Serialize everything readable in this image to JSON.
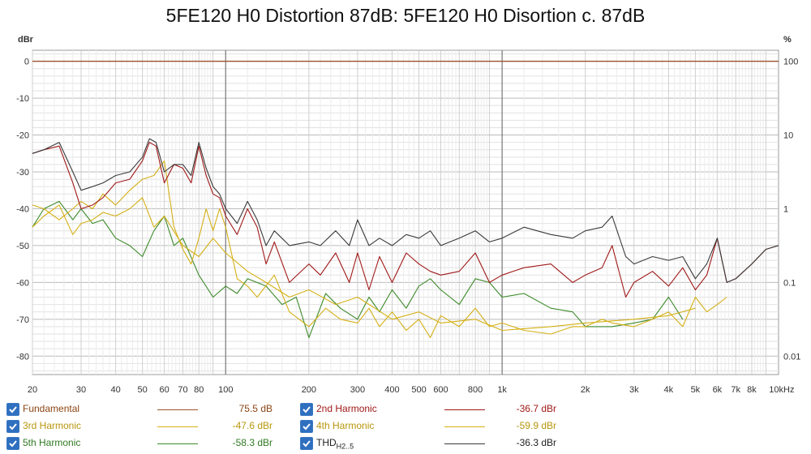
{
  "chart_data": {
    "type": "line",
    "title": "5FE120 H0 Distortion 87dB: 5FE120 H0 Disortion c. 87dB",
    "xscale": "log",
    "xlim": [
      20,
      10000
    ],
    "ylim": [
      -85,
      3
    ],
    "ylabel_left": "dBr",
    "ylabel_right": "%",
    "xunit": "Hz",
    "yticks": [
      0,
      -10,
      -20,
      -30,
      -40,
      -50,
      -60,
      -70,
      -80
    ],
    "yticks_right": [
      "100",
      "10",
      "1",
      "0.1",
      "0.01"
    ],
    "xticks": [
      "20",
      "30",
      "40",
      "50",
      "60",
      "70",
      "80",
      "100",
      "200",
      "300",
      "400",
      "500",
      "600",
      "800",
      "1k",
      "2k",
      "3k",
      "4k",
      "5k",
      "6k",
      "7k",
      "8k",
      "10k"
    ],
    "grid": true,
    "series": [
      {
        "name": "Fundamental",
        "color": "#a0522d",
        "value": "75.5 dB",
        "x": [
          20,
          10000
        ],
        "y": [
          0,
          0
        ]
      },
      {
        "name": "2nd Harmonic",
        "color": "#a01818",
        "value": "-36.7 dBr",
        "x": [
          20,
          22,
          25,
          28,
          30,
          33,
          36,
          40,
          45,
          50,
          53,
          56,
          60,
          65,
          70,
          75,
          80,
          85,
          90,
          95,
          100,
          110,
          120,
          130,
          140,
          150,
          170,
          200,
          220,
          250,
          280,
          300,
          330,
          360,
          400,
          450,
          500,
          550,
          600,
          700,
          800,
          900,
          1000,
          1200,
          1500,
          1800,
          2000,
          2300,
          2500,
          2800,
          3000,
          3500,
          4000,
          4500,
          5000,
          5500,
          6000,
          6500,
          7000,
          8000,
          9000,
          10000
        ],
        "y": [
          -25,
          -24,
          -23,
          -33,
          -40,
          -39,
          -37,
          -33,
          -32,
          -27,
          -22,
          -23,
          -33,
          -28,
          -29,
          -33,
          -23,
          -31,
          -36,
          -37,
          -42,
          -47,
          -40,
          -45,
          -55,
          -49,
          -60,
          -55,
          -58,
          -52,
          -60,
          -52,
          -62,
          -53,
          -60,
          -52,
          -55,
          -57,
          -58,
          -57,
          -52,
          -60,
          -58,
          -56,
          -55,
          -60,
          -58,
          -56,
          -50,
          -64,
          -60,
          -57,
          -61,
          -56,
          -62,
          -58,
          -48,
          -60,
          -59,
          -55,
          -51,
          -50
        ]
      },
      {
        "name": "3rd Harmonic",
        "color": "#d4b016",
        "value": "-47.6 dBr",
        "x": [
          20,
          22,
          25,
          28,
          30,
          33,
          36,
          40,
          45,
          50,
          55,
          60,
          65,
          70,
          75,
          80,
          85,
          90,
          95,
          100,
          110,
          120,
          130,
          150,
          170,
          200,
          230,
          260,
          300,
          330,
          360,
          400,
          450,
          500,
          550,
          600,
          700,
          800,
          900,
          1000,
          1200,
          1500,
          1800,
          2000,
          2300,
          2500,
          3000,
          3500,
          4000,
          4500,
          5000,
          5500,
          6000,
          6500
        ],
        "y": [
          -39,
          -40,
          -43,
          -40,
          -38,
          -40,
          -36,
          -39,
          -35,
          -32,
          -31,
          -27,
          -45,
          -51,
          -55,
          -48,
          -40,
          -46,
          -40,
          -45,
          -59,
          -61,
          -64,
          -58,
          -68,
          -72,
          -67,
          -70,
          -71,
          -67,
          -72,
          -68,
          -73,
          -70,
          -75,
          -69,
          -72,
          -67,
          -72,
          -71,
          -73,
          -74,
          -72,
          -72,
          -70,
          -71,
          -72,
          -70,
          -68,
          -72,
          -64,
          -68,
          -66,
          -64
        ]
      },
      {
        "name": "4th Harmonic",
        "color": "#d4b016",
        "value": "-59.9 dBr",
        "x": [
          20,
          22,
          25,
          28,
          30,
          33,
          36,
          40,
          45,
          50,
          55,
          60,
          70,
          80,
          90,
          100,
          120,
          140,
          170,
          200,
          250,
          300,
          400,
          500,
          600,
          800,
          1000,
          1500,
          2000,
          3000,
          4000,
          5000
        ],
        "y": [
          -45,
          -42,
          -39,
          -47,
          -44,
          -43,
          -41,
          -42,
          -40,
          -37,
          -45,
          -42,
          -50,
          -53,
          -48,
          -52,
          -57,
          -60,
          -64,
          -62,
          -66,
          -64,
          -70,
          -68,
          -71,
          -70,
          -73,
          -72,
          -71,
          -70,
          -69,
          -67
        ]
      },
      {
        "name": "5th Harmonic",
        "color": "#3d8a2a",
        "value": "-58.3 dBr",
        "x": [
          20,
          22,
          25,
          28,
          30,
          33,
          36,
          40,
          45,
          50,
          55,
          60,
          65,
          70,
          80,
          90,
          100,
          110,
          120,
          140,
          160,
          180,
          200,
          230,
          260,
          300,
          330,
          360,
          400,
          450,
          500,
          550,
          600,
          700,
          800,
          900,
          1000,
          1200,
          1500,
          1800,
          2000,
          2500,
          3000,
          3500,
          4000,
          4500
        ],
        "y": [
          -45,
          -40,
          -38,
          -43,
          -40,
          -44,
          -43,
          -48,
          -50,
          -53,
          -46,
          -42,
          -50,
          -48,
          -58,
          -64,
          -61,
          -63,
          -59,
          -61,
          -66,
          -64,
          -75,
          -63,
          -67,
          -70,
          -64,
          -68,
          -62,
          -67,
          -61,
          -59,
          -62,
          -66,
          -59,
          -60,
          -64,
          -63,
          -67,
          -68,
          -72,
          -72,
          -71,
          -70,
          -64,
          -70
        ]
      },
      {
        "name": "THD",
        "name_sub": "H2..5",
        "color": "#3a3a3a",
        "value": "-36.3 dBr",
        "x": [
          20,
          22,
          25,
          28,
          30,
          33,
          36,
          40,
          45,
          50,
          53,
          56,
          60,
          65,
          70,
          75,
          80,
          85,
          90,
          95,
          100,
          110,
          120,
          130,
          140,
          150,
          170,
          200,
          220,
          250,
          280,
          300,
          330,
          360,
          400,
          450,
          500,
          550,
          600,
          700,
          800,
          900,
          1000,
          1200,
          1500,
          1800,
          2000,
          2300,
          2500,
          2800,
          3000,
          3500,
          4000,
          4500,
          5000,
          5500,
          6000,
          6500,
          7000,
          8000,
          9000,
          10000
        ],
        "y": [
          -25,
          -24,
          -22,
          -30,
          -35,
          -34,
          -33,
          -31,
          -30,
          -26,
          -21,
          -22,
          -30,
          -28,
          -28,
          -31,
          -22,
          -29,
          -34,
          -36,
          -40,
          -44,
          -38,
          -43,
          -50,
          -46,
          -50,
          -49,
          -50,
          -46,
          -50,
          -43,
          -50,
          -48,
          -50,
          -47,
          -48,
          -46,
          -50,
          -48,
          -46,
          -49,
          -48,
          -45,
          -47,
          -48,
          -46,
          -45,
          -42,
          -53,
          -55,
          -53,
          -54,
          -53,
          -59,
          -55,
          -48,
          -60,
          -59,
          -55,
          -51,
          -50
        ]
      }
    ]
  },
  "legend": [
    {
      "label": "Fundamental",
      "sub": "",
      "value": "75.5 dB",
      "color": "#a0522d",
      "text_color": "#8b4513"
    },
    {
      "label": "2nd Harmonic",
      "sub": "",
      "value": "-36.7 dBr",
      "color": "#a01818",
      "text_color": "#a01818"
    },
    {
      "label": "3rd Harmonic",
      "sub": "",
      "value": "-47.6 dBr",
      "color": "#d4b016",
      "text_color": "#b8960c"
    },
    {
      "label": "4th Harmonic",
      "sub": "",
      "value": "-59.9 dBr",
      "color": "#d4b016",
      "text_color": "#b8960c"
    },
    {
      "label": "5th Harmonic",
      "sub": "",
      "value": "-58.3 dBr",
      "color": "#3d8a2a",
      "text_color": "#2f7a22"
    },
    {
      "label": "THD",
      "sub": "H2..5",
      "value": "-36.3 dBr",
      "color": "#3a3a3a",
      "text_color": "#222222"
    }
  ]
}
